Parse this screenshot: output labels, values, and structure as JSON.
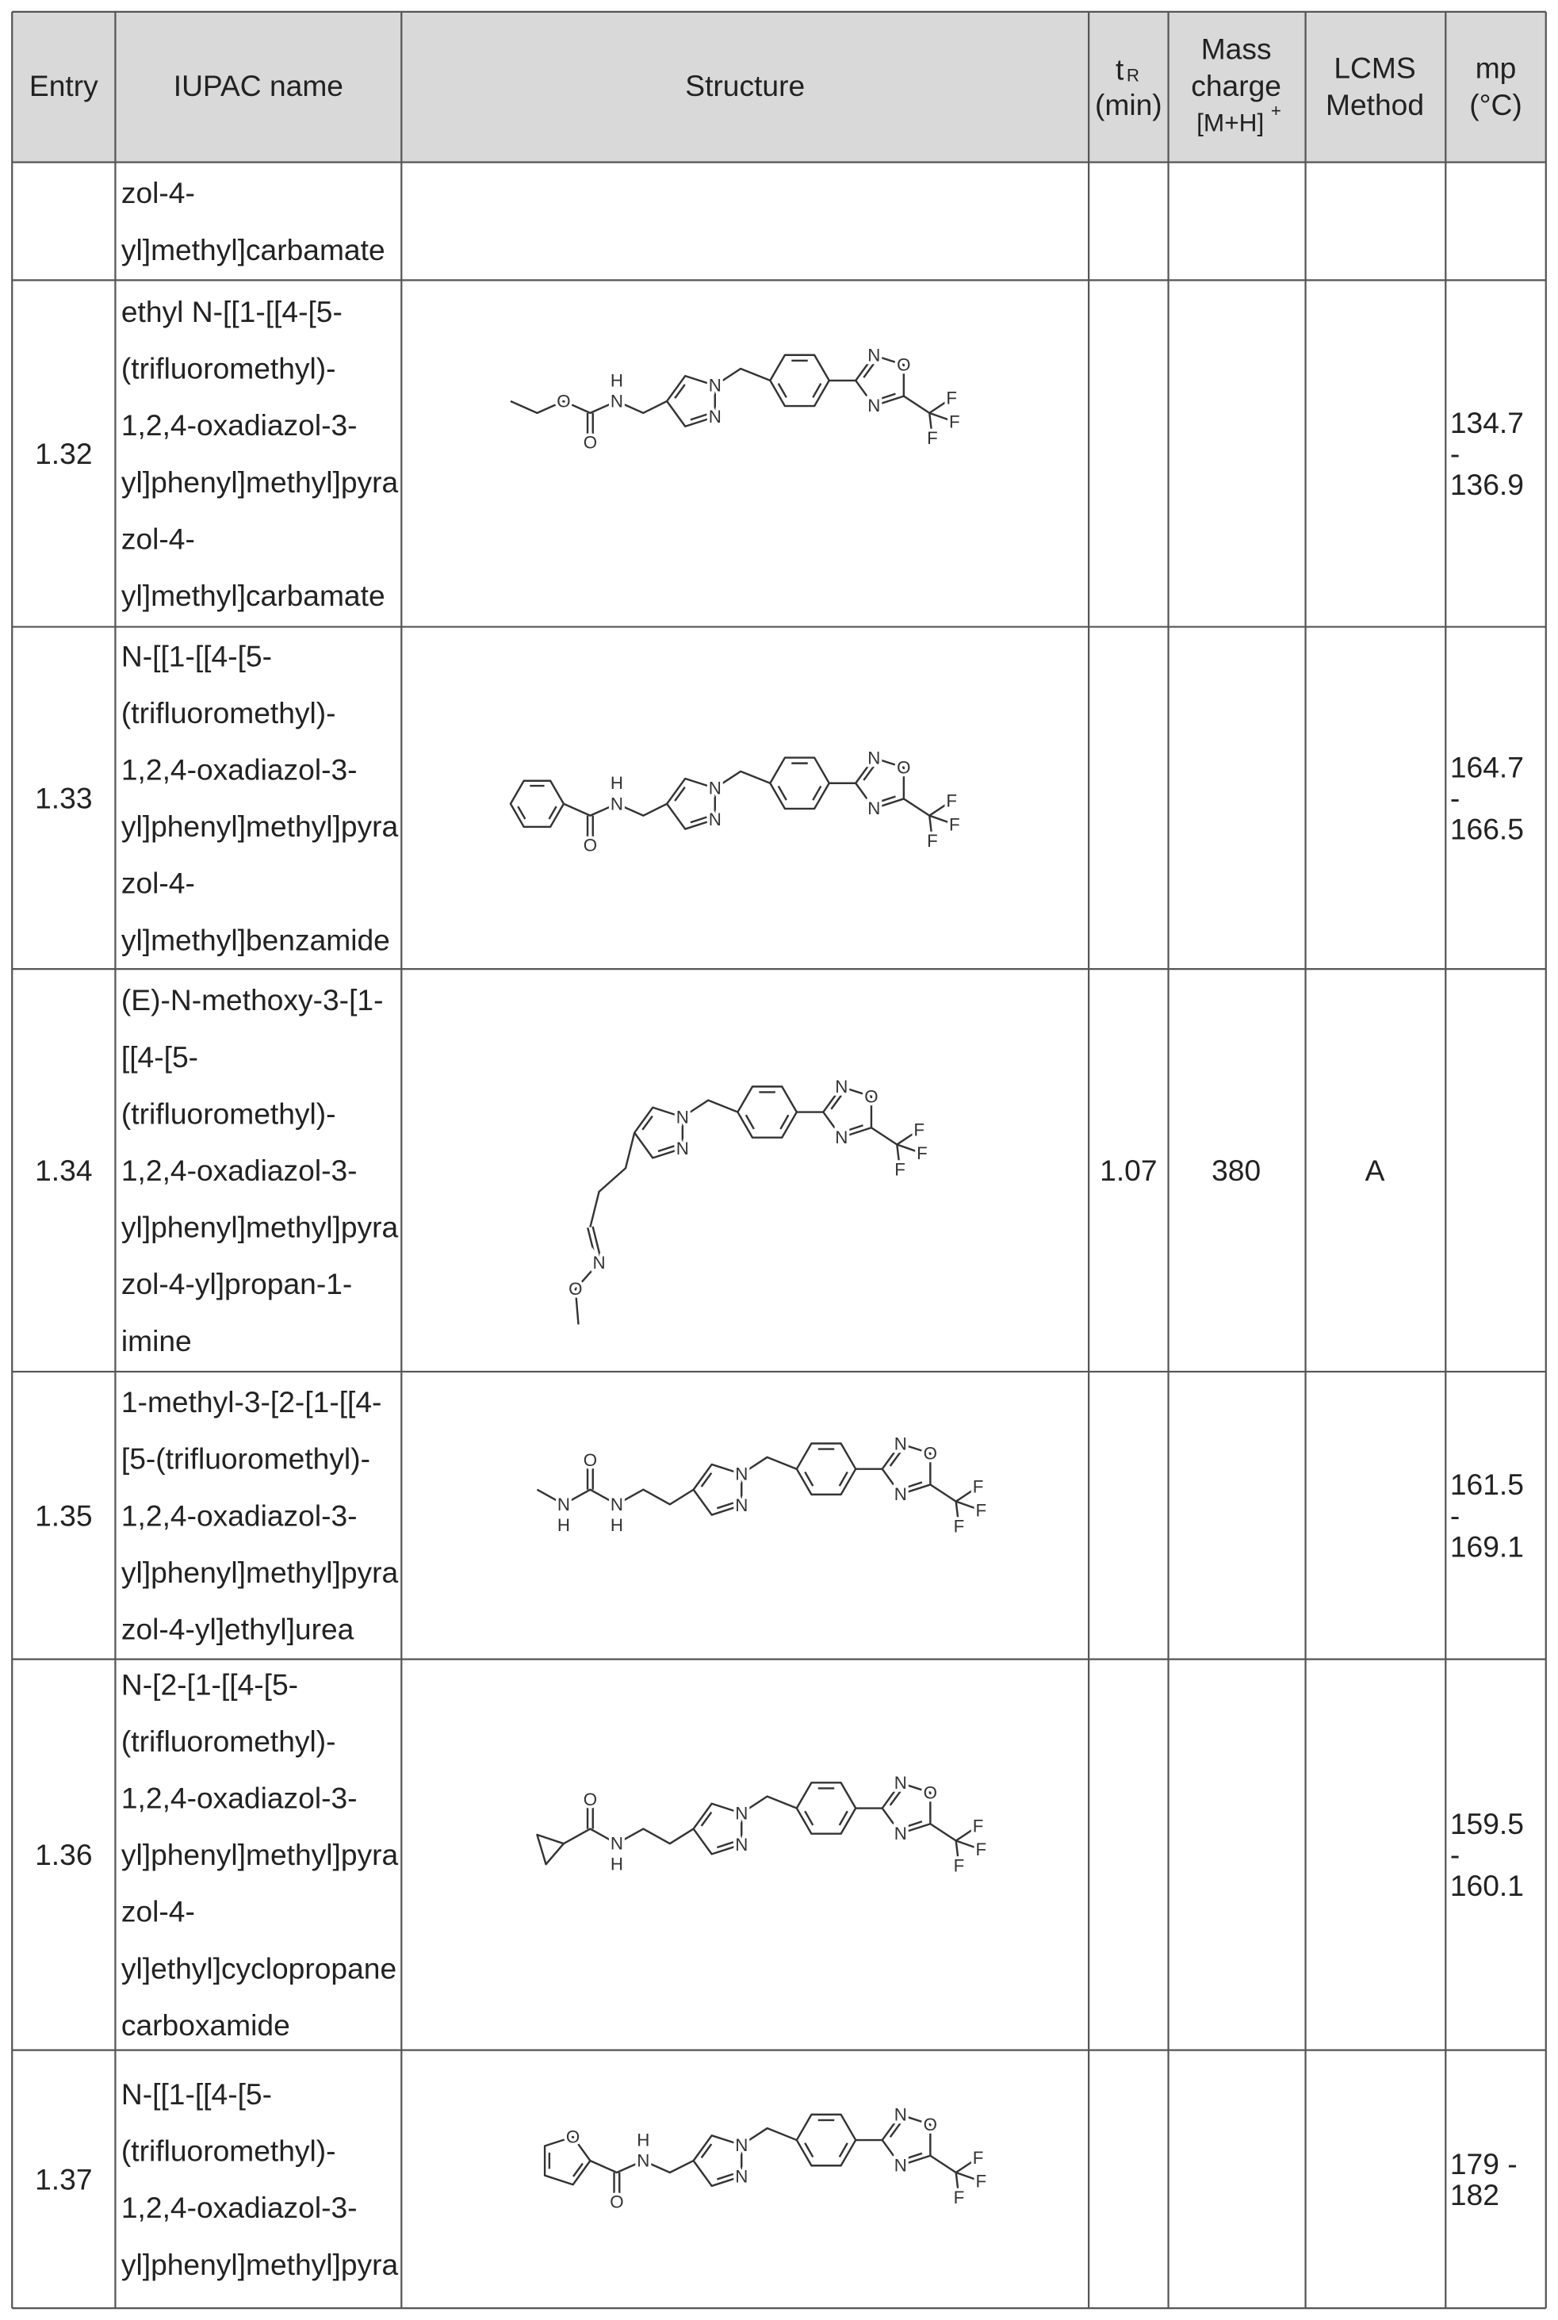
{
  "header": {
    "entry": "Entry",
    "iupac": "IUPAC name",
    "structure": "Structure",
    "tr": {
      "t": "t",
      "sub": "R",
      "unit": "(min)"
    },
    "mass": {
      "lines": [
        "Mass",
        "charge"
      ],
      "ion": "[M+H]",
      "sup": "+"
    },
    "lcms": [
      "LCMS",
      "Method"
    ],
    "mp": [
      "mp",
      "(°C)"
    ]
  },
  "rows": [
    {
      "name": [
        "zol-4-",
        "yl]methyl]carbamate"
      ]
    },
    {
      "entry": "1.32",
      "name": [
        "ethyl N-[[1-[[4-[5-",
        "(trifluoromethyl)-",
        "1,2,4-oxadiazol-3-",
        "yl]phenyl]methyl]pyra",
        "zol-4-",
        "yl]methyl]carbamate"
      ],
      "structure": [
        "N",
        "N",
        "N",
        "O",
        "N",
        "F",
        "F",
        "F",
        "H",
        "N",
        "O",
        "O"
      ],
      "mp": [
        "134.7",
        "-",
        "136.9"
      ]
    },
    {
      "entry": "1.33",
      "name": [
        "N-[[1-[[4-[5-",
        "(trifluoromethyl)-",
        "1,2,4-oxadiazol-3-",
        "yl]phenyl]methyl]pyra",
        "zol-4-",
        "yl]methyl]benzamide"
      ],
      "structure": [
        "N",
        "N",
        "N",
        "O",
        "N",
        "F",
        "F",
        "F",
        "H",
        "N",
        "O"
      ],
      "mp": [
        "164.7",
        "-",
        "166.5"
      ]
    },
    {
      "entry": "1.34",
      "name": [
        "(E)-N-methoxy-3-[1-",
        "[[4-[5-",
        "(trifluoromethyl)-",
        "1,2,4-oxadiazol-3-",
        "yl]phenyl]methyl]pyra",
        "zol-4-yl]propan-1-",
        "imine"
      ],
      "structure": [
        "N",
        "N",
        "N",
        "O",
        "N",
        "F",
        "F",
        "F",
        "N",
        "O"
      ],
      "tr": 1.07,
      "mass": 380,
      "lcms": "A"
    },
    {
      "entry": "1.35",
      "name": [
        "1-methyl-3-[2-[1-[[4-",
        "[5-(trifluoromethyl)-",
        "1,2,4-oxadiazol-3-",
        "yl]phenyl]methyl]pyra",
        "zol-4-yl]ethyl]urea"
      ],
      "structure": [
        "N",
        "N",
        "N",
        "O",
        "N",
        "F",
        "F",
        "F",
        "O",
        "N",
        "H",
        "N",
        "H"
      ],
      "mp": [
        "161.5",
        "-",
        "169.1"
      ]
    },
    {
      "entry": "1.36",
      "name": [
        "N-[2-[1-[[4-[5-",
        "(trifluoromethyl)-",
        "1,2,4-oxadiazol-3-",
        "yl]phenyl]methyl]pyra",
        "zol-4-",
        "yl]ethyl]cyclopropane",
        "carboxamide"
      ],
      "structure": [
        "N",
        "N",
        "N",
        "O",
        "N",
        "F",
        "F",
        "F",
        "O",
        "N",
        "H"
      ],
      "mp": [
        "159.5",
        "-",
        "160.1"
      ]
    },
    {
      "entry": "1.37",
      "name": [
        "N-[[1-[[4-[5-",
        "(trifluoromethyl)-",
        "1,2,4-oxadiazol-3-",
        "yl]phenyl]methyl]pyra"
      ],
      "structure": [
        "N",
        "N",
        "N",
        "O",
        "N",
        "F",
        "F",
        "F",
        "H",
        "N",
        "O",
        "O"
      ],
      "mp": [
        "179 -",
        "182"
      ]
    }
  ]
}
